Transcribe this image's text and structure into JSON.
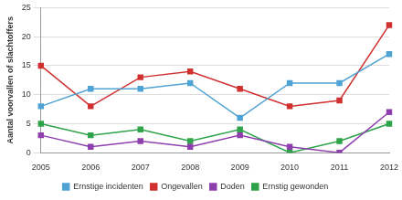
{
  "chart_data": {
    "type": "line",
    "y_label": "Aantal voorvallen of slachtoffers",
    "categories": [
      "2005",
      "2006",
      "2007",
      "2008",
      "2009",
      "2010",
      "2011",
      "2012"
    ],
    "series": [
      {
        "name": "Ernstige incidenten",
        "color": "#4fa3d3",
        "marker": "square",
        "line_style": "solid",
        "values": [
          8,
          11,
          11,
          12,
          6,
          12,
          12,
          17
        ]
      },
      {
        "name": "Ongevallen",
        "color": "#d0302f",
        "marker": "square",
        "line_style": "solid",
        "values": [
          15,
          8,
          13,
          14,
          11,
          8,
          9,
          22
        ]
      },
      {
        "name": "Doden",
        "color": "#8e3fae",
        "marker": "square",
        "line_style": "solid",
        "values": [
          3,
          1,
          2,
          1,
          3,
          1,
          0,
          7
        ]
      },
      {
        "name": "Ernstig gewonden",
        "color": "#2ea34a",
        "marker": "square",
        "line_style": "solid",
        "values": [
          5,
          3,
          4,
          2,
          4,
          0,
          2,
          5
        ]
      }
    ],
    "ylim": [
      0,
      25
    ],
    "yticks": [
      0,
      5,
      10,
      15,
      20,
      25
    ],
    "grid": true,
    "legend": "bottom"
  }
}
